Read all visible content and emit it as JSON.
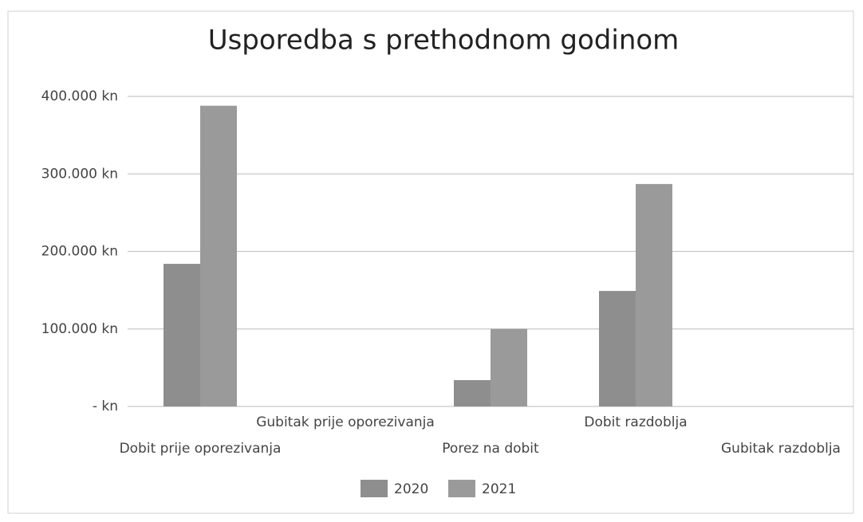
{
  "chart_data": {
    "type": "bar",
    "title": "Usporedba s prethodnom godinom",
    "categories": [
      "Dobit prije oporezivanja",
      "Gubitak prije oporezivanja",
      "Porez na dobit",
      "Dobit razdoblja",
      "Gubitak razdoblja"
    ],
    "series": [
      {
        "name": "2020",
        "color": "#8e8e8e",
        "values": [
          184000,
          0,
          34000,
          149000,
          0
        ]
      },
      {
        "name": "2021",
        "color": "#9a9a9a",
        "values": [
          388000,
          0,
          100000,
          287000,
          0
        ]
      }
    ],
    "ylim": [
      0,
      400000
    ],
    "yticks": [
      {
        "value": 0,
        "label": "- kn"
      },
      {
        "value": 100000,
        "label": "100.000 kn"
      },
      {
        "value": 200000,
        "label": "200.000 kn"
      },
      {
        "value": 300000,
        "label": "300.000 kn"
      },
      {
        "value": 400000,
        "label": "400.000 kn"
      }
    ],
    "grid": true,
    "legend": "bottom"
  }
}
